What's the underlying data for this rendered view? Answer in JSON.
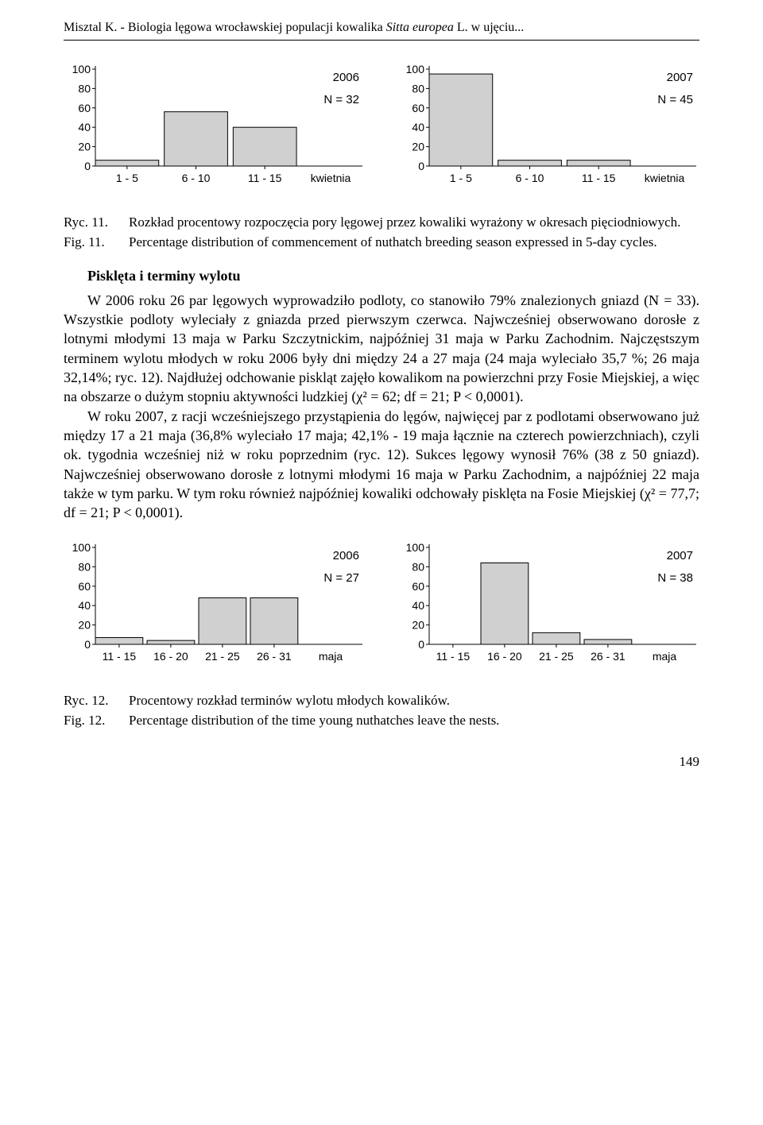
{
  "runningHead": {
    "prefix": "Misztal K. - Biologia lęgowa wrocławskiej populacji kowalika ",
    "italic": "Sitta europea",
    "suffix": " L. w ujęciu..."
  },
  "fig11": {
    "panels": [
      {
        "year": "2006",
        "n": "N = 32",
        "type": "bar",
        "ylabel": "%",
        "xsuffix": "kwietnia",
        "categories": [
          "1 - 5",
          "6 - 10",
          "11 - 15"
        ],
        "values": [
          6,
          56,
          40
        ],
        "ylim": [
          0,
          100
        ],
        "ytick_step": 20,
        "bar_fill": "#d0d0d0",
        "bar_stroke": "#000000",
        "axis_color": "#000000",
        "text_color": "#000000",
        "bg": "#ffffff",
        "fontsize": 14
      },
      {
        "year": "2007",
        "n": "N = 45",
        "type": "bar",
        "ylabel": "%",
        "xsuffix": "kwietnia",
        "categories": [
          "1 - 5",
          "6 - 10",
          "11 - 15"
        ],
        "values": [
          95,
          6,
          6
        ],
        "ylim": [
          0,
          100
        ],
        "ytick_step": 20,
        "bar_fill": "#d0d0d0",
        "bar_stroke": "#000000",
        "axis_color": "#000000",
        "text_color": "#000000",
        "bg": "#ffffff",
        "fontsize": 14
      }
    ],
    "captionPL_label": "Ryc. 11.",
    "captionPL_text": "Rozkład procentowy rozpoczęcia pory lęgowej przez kowaliki wyrażony w okresach pięciodniowych.",
    "captionEN_label": "Fig. 11.",
    "captionEN_text": "Percentage distribution of commencement of nuthatch breeding season expressed in 5-day cycles."
  },
  "sectionHead": "Pisklęta i terminy wylotu",
  "para1": "W 2006 roku 26 par lęgowych wyprowadziło podloty, co stanowiło 79% znalezionych gniazd (N = 33). Wszystkie podloty wyleciały z gniazda przed pierwszym czerwca. Najwcześniej obserwowano dorosłe z lotnymi młodymi 13 maja w Parku Szczytnickim, najpóźniej 31 maja w Parku Zachodnim. Najczęstszym terminem wylotu młodych w roku 2006 były dni między 24 a 27 maja (24 maja wyleciało 35,7 %; 26 maja 32,14%; ryc. 12). Najdłużej odchowanie piskląt zajęło kowalikom na powierzchni przy Fosie Miejskiej, a więc na obszarze o dużym stopniu aktywności ludzkiej (χ² = 62; df = 21; P < 0,0001).",
  "para2": "W roku 2007, z racji wcześniejszego przystąpienia do lęgów, najwięcej par z podlotami obserwowano już między 17 a 21 maja (36,8% wyleciało 17 maja; 42,1% - 19 maja łącznie na czterech powierzchniach), czyli ok. tygodnia wcześniej niż w roku poprzednim (ryc. 12). Sukces lęgowy wynosił 76% (38 z 50 gniazd). Najwcześniej obserwowano dorosłe z lotnymi młodymi 16 maja w Parku Zachodnim, a najpóźniej 22 maja także w tym parku. W tym roku również najpóźniej kowaliki odchowały pisklęta na Fosie Miejskiej (χ² = 77,7; df = 21; P < 0,0001).",
  "fig12": {
    "panels": [
      {
        "year": "2006",
        "n": "N = 27",
        "type": "bar",
        "ylabel": "%",
        "xsuffix": "maja",
        "categories": [
          "11 - 15",
          "16 - 20",
          "21 - 25",
          "26 - 31"
        ],
        "values": [
          7,
          4,
          48,
          48
        ],
        "ylim": [
          0,
          100
        ],
        "ytick_step": 20,
        "bar_fill": "#d0d0d0",
        "bar_stroke": "#000000",
        "axis_color": "#000000",
        "text_color": "#000000",
        "bg": "#ffffff",
        "fontsize": 14
      },
      {
        "year": "2007",
        "n": "N = 38",
        "type": "bar",
        "ylabel": "%",
        "xsuffix": "maja",
        "categories": [
          "11 - 15",
          "16 - 20",
          "21 - 25",
          "26 - 31"
        ],
        "values": [
          0,
          84,
          12,
          5
        ],
        "ylim": [
          0,
          100
        ],
        "ytick_step": 20,
        "bar_fill": "#d0d0d0",
        "bar_stroke": "#000000",
        "axis_color": "#000000",
        "text_color": "#000000",
        "bg": "#ffffff",
        "fontsize": 14
      }
    ],
    "captionPL_label": "Ryc. 12.",
    "captionPL_text": "Procentowy rozkład terminów wylotu młodych kowalików.",
    "captionEN_label": "Fig. 12.",
    "captionEN_text": "Percentage distribution of the time young nuthatches leave the nests."
  },
  "pageNumber": "149"
}
